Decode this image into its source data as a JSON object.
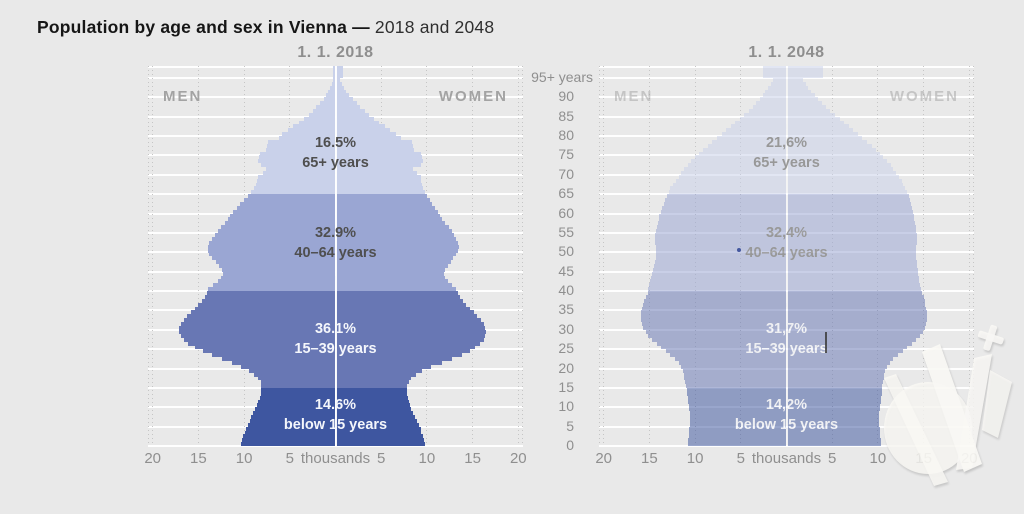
{
  "header": {
    "title_bold": "Population by age and sex in Vienna —",
    "title_suffix": " 2018 and 2048"
  },
  "axis": {
    "men_label": "MEN",
    "women_label": "WOMEN",
    "age_ticks": [
      "95+ years",
      "90",
      "85",
      "80",
      "75",
      "70",
      "65",
      "60",
      "55",
      "50",
      "45",
      "40",
      "35",
      "30",
      "25",
      "20",
      "15",
      "10",
      "5",
      "0"
    ],
    "x_ticks": [
      "20",
      "15",
      "10",
      "5",
      "thousands",
      "5",
      "10",
      "15",
      "20"
    ],
    "x_tick_positions_thousands": [
      -20,
      -15,
      -10,
      -5,
      0,
      5,
      10,
      15,
      20
    ]
  },
  "colors": {
    "age_below15": "#3e56a0",
    "age_15_39": "#6877b4",
    "age_40_64": "#9aa6d3",
    "age_65plus": "#c9d1ea",
    "background": "#e9e9e9",
    "grid_white": "#ffffff",
    "text_gray": "#8f8f8f",
    "annotation_dark": "#4f4f4f",
    "annotation_light": "#f4f6fb"
  },
  "chart_data": [
    {
      "type": "bar",
      "variant": "population-pyramid",
      "title": "1. 1. 2018",
      "faded": false,
      "x_unit": "thousands",
      "x_range_thousands": [
        -20,
        20
      ],
      "age_axis": "single years of age, 0 to 95+",
      "segments": [
        {
          "pct": "16.5%",
          "label": "65+ years",
          "share": 16.5,
          "age_group": "65+",
          "style": "dark-text",
          "center_age": 75.5,
          "color_key": "age_65plus"
        },
        {
          "pct": "32.9%",
          "label": "40–64 years",
          "share": 32.9,
          "age_group": "40–64",
          "style": "dark-text",
          "center_age": 52.5,
          "color_key": "age_40_64"
        },
        {
          "pct": "36.1%",
          "label": "15–39 years",
          "share": 36.1,
          "age_group": "15–39",
          "style": "light-text",
          "center_age": 27.5,
          "color_key": "age_15_39"
        },
        {
          "pct": "14.6%",
          "label": "below 15 years",
          "share": 14.6,
          "age_group": "0–14",
          "style": "light-text",
          "center_age": 8,
          "color_key": "age_below15"
        }
      ],
      "series": [
        {
          "name": "men",
          "side": "left",
          "values": [
            10.3,
            10.2,
            10.1,
            9.9,
            9.8,
            9.6,
            9.4,
            9.2,
            9.0,
            8.8,
            8.6,
            8.5,
            8.3,
            8.2,
            8.1,
            8.1,
            8.2,
            8.5,
            8.9,
            9.5,
            10.3,
            11.3,
            12.4,
            13.5,
            14.5,
            15.4,
            16.1,
            16.6,
            16.9,
            17.1,
            17.1,
            16.9,
            16.6,
            16.2,
            15.8,
            15.4,
            15.0,
            14.6,
            14.3,
            14.1,
            14.0,
            13.4,
            12.9,
            12.5,
            12.3,
            12.4,
            12.7,
            13.1,
            13.5,
            13.8,
            14.0,
            14.0,
            13.8,
            13.5,
            13.2,
            12.9,
            12.5,
            12.1,
            11.8,
            11.5,
            11.2,
            10.8,
            10.4,
            10.0,
            9.6,
            9.2,
            8.9,
            8.7,
            8.6,
            8.5,
            7.9,
            7.6,
            8.2,
            8.5,
            8.4,
            8.3,
            7.6,
            7.5,
            7.4,
            6.2,
            5.8,
            5.2,
            4.6,
            4.0,
            3.4,
            2.9,
            2.5,
            2.1,
            1.7,
            1.3,
            1.0,
            0.8,
            0.6,
            0.4,
            0.3,
            0.3
          ]
        },
        {
          "name": "women",
          "side": "right",
          "values": [
            9.8,
            9.7,
            9.6,
            9.4,
            9.3,
            9.1,
            8.9,
            8.7,
            8.5,
            8.3,
            8.2,
            8.0,
            7.9,
            7.8,
            7.8,
            7.8,
            8.0,
            8.3,
            8.8,
            9.5,
            10.5,
            11.6,
            12.7,
            13.8,
            14.7,
            15.3,
            15.8,
            16.2,
            16.4,
            16.5,
            16.4,
            16.2,
            15.9,
            15.5,
            15.1,
            14.7,
            14.3,
            13.9,
            13.6,
            13.4,
            13.2,
            12.7,
            12.3,
            12.0,
            11.9,
            12.0,
            12.3,
            12.6,
            12.9,
            13.2,
            13.4,
            13.5,
            13.4,
            13.2,
            13.0,
            12.7,
            12.4,
            12.0,
            11.7,
            11.4,
            11.2,
            10.9,
            10.6,
            10.3,
            10.0,
            9.8,
            9.6,
            9.5,
            9.4,
            9.3,
            8.9,
            8.5,
            9.3,
            9.6,
            9.5,
            9.3,
            8.6,
            8.5,
            8.4,
            7.2,
            6.6,
            6.0,
            5.4,
            4.8,
            4.2,
            3.7,
            3.2,
            2.7,
            2.3,
            1.9,
            1.5,
            1.2,
            0.9,
            0.7,
            0.5,
            0.8
          ]
        }
      ]
    },
    {
      "type": "bar",
      "variant": "population-pyramid",
      "title": "1. 1. 2048",
      "faded": true,
      "x_unit": "thousands",
      "x_range_thousands": [
        -20,
        20
      ],
      "age_axis": "single years of age, 0 to 95+",
      "segments": [
        {
          "pct": "21,6%",
          "label": "65+ years",
          "share": 21.6,
          "age_group": "65+",
          "style": "dark-text",
          "center_age": 75.5,
          "color_key": "age_65plus"
        },
        {
          "pct": "32,4%",
          "label": "40–64 years",
          "share": 32.4,
          "age_group": "40–64",
          "style": "dark-text",
          "center_age": 52.5,
          "color_key": "age_40_64"
        },
        {
          "pct": "31,7%",
          "label": "15–39 years",
          "share": 31.7,
          "age_group": "15–39",
          "style": "light-text",
          "center_age": 27.5,
          "color_key": "age_15_39"
        },
        {
          "pct": "14,2%",
          "label": "below 15 years",
          "share": 14.2,
          "age_group": "0–14",
          "style": "light-text",
          "center_age": 8,
          "color_key": "age_below15"
        }
      ],
      "series": [
        {
          "name": "men",
          "side": "left",
          "values": [
            10.8,
            10.8,
            10.7,
            10.7,
            10.7,
            10.6,
            10.6,
            10.6,
            10.6,
            10.7,
            10.7,
            10.8,
            10.8,
            10.9,
            10.9,
            11.0,
            11.1,
            11.2,
            11.2,
            11.3,
            11.5,
            11.8,
            12.2,
            12.7,
            13.2,
            13.7,
            14.2,
            14.7,
            15.1,
            15.4,
            15.7,
            15.8,
            15.9,
            15.9,
            15.9,
            15.8,
            15.7,
            15.6,
            15.4,
            15.2,
            15.1,
            15.0,
            14.9,
            14.8,
            14.7,
            14.6,
            14.5,
            14.4,
            14.3,
            14.3,
            14.3,
            14.3,
            14.4,
            14.4,
            14.4,
            14.3,
            14.2,
            14.1,
            14.0,
            13.9,
            13.7,
            13.6,
            13.4,
            13.3,
            13.1,
            12.9,
            12.7,
            12.4,
            12.1,
            11.8,
            11.5,
            11.2,
            10.8,
            10.4,
            10.0,
            9.6,
            9.1,
            8.6,
            8.1,
            7.6,
            7.1,
            6.6,
            6.1,
            5.6,
            5.1,
            4.6,
            4.1,
            3.7,
            3.3,
            2.9,
            2.6,
            2.3,
            2.0,
            1.7,
            1.5,
            2.6
          ]
        },
        {
          "name": "women",
          "side": "right",
          "values": [
            10.3,
            10.3,
            10.2,
            10.2,
            10.2,
            10.1,
            10.1,
            10.1,
            10.1,
            10.2,
            10.2,
            10.3,
            10.3,
            10.4,
            10.4,
            10.5,
            10.6,
            10.7,
            10.7,
            10.8,
            11.0,
            11.3,
            11.7,
            12.2,
            12.7,
            13.2,
            13.7,
            14.2,
            14.6,
            14.9,
            15.2,
            15.3,
            15.4,
            15.4,
            15.4,
            15.3,
            15.2,
            15.1,
            15.0,
            14.8,
            14.7,
            14.6,
            14.5,
            14.5,
            14.4,
            14.4,
            14.3,
            14.3,
            14.2,
            14.2,
            14.2,
            14.2,
            14.3,
            14.3,
            14.3,
            14.2,
            14.2,
            14.1,
            14.0,
            13.9,
            13.8,
            13.7,
            13.6,
            13.5,
            13.4,
            13.2,
            13.0,
            12.8,
            12.6,
            12.3,
            12.0,
            11.7,
            11.4,
            11.0,
            10.6,
            10.2,
            9.8,
            9.3,
            8.8,
            8.3,
            7.8,
            7.3,
            6.8,
            6.3,
            5.8,
            5.3,
            4.8,
            4.3,
            3.9,
            3.5,
            3.1,
            2.7,
            2.4,
            2.1,
            1.8,
            4.0
          ]
        }
      ]
    }
  ]
}
